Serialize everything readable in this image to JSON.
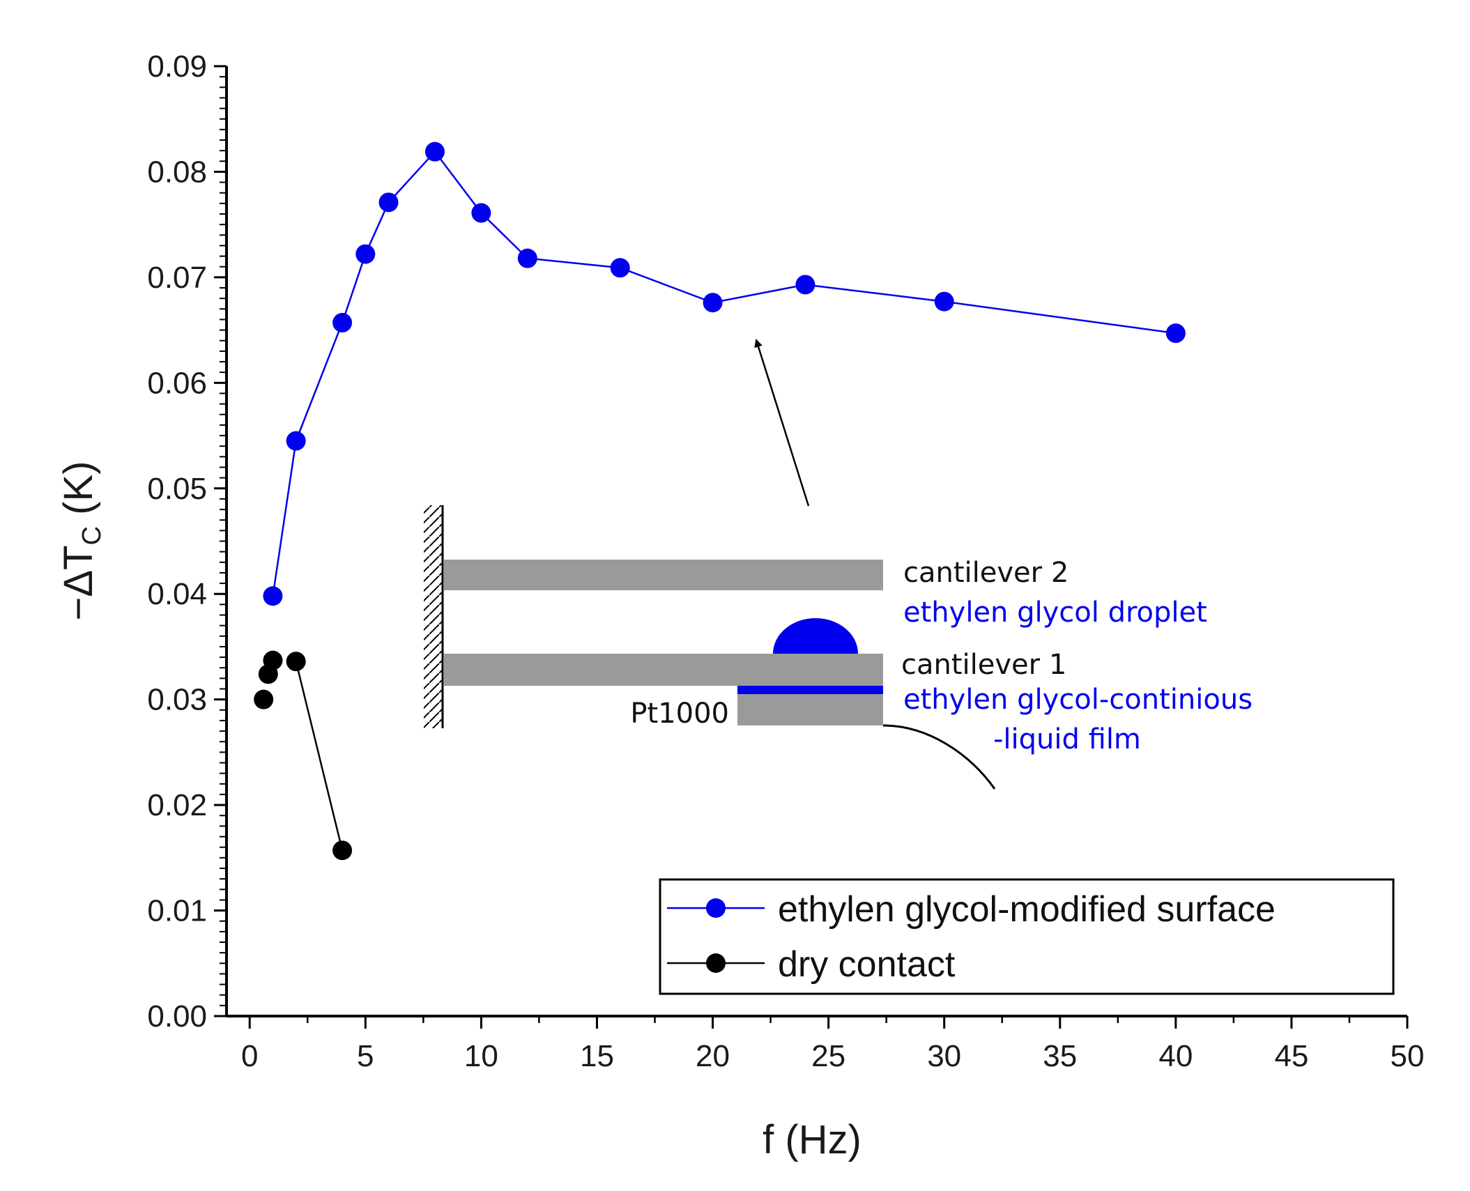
{
  "chart_data": {
    "type": "scatter",
    "title": "",
    "xlabel": "f (Hz)",
    "ylabel": {
      "prefix": "−ΔT",
      "subscript": "C",
      "suffix": " (K)"
    },
    "xlim": [
      -1,
      50
    ],
    "ylim": [
      0,
      0.09
    ],
    "x_ticks": [
      "0",
      "5",
      "10",
      "15",
      "20",
      "25",
      "30",
      "35",
      "40",
      "45",
      "50"
    ],
    "y_ticks": [
      "0.00",
      "0.01",
      "0.02",
      "0.03",
      "0.04",
      "0.05",
      "0.06",
      "0.07",
      "0.08",
      "0.09"
    ],
    "series": [
      {
        "name": "ethylen glycol-modified surface",
        "color": "#0000ee",
        "line": true,
        "x": [
          1,
          2,
          4,
          5,
          6,
          8,
          10,
          12,
          16,
          20,
          24,
          30,
          40
        ],
        "y": [
          0.0398,
          0.0545,
          0.0657,
          0.0722,
          0.0771,
          0.0819,
          0.0761,
          0.0718,
          0.0709,
          0.0676,
          0.0693,
          0.0677,
          0.0647
        ]
      },
      {
        "name": "dry contact",
        "color": "#000000",
        "line": false,
        "x": [
          0.6,
          0.8,
          1,
          2,
          4
        ],
        "y": [
          0.03,
          0.0324,
          0.0337,
          0.0336,
          0.0157
        ]
      }
    ],
    "connector": {
      "from_x": 2,
      "from_y": 0.0336,
      "to_x": 4,
      "to_y": 0.0157
    },
    "legend": {
      "placement": "bottom-right"
    },
    "inset": {
      "labels": {
        "cantilever2": "cantilever 2",
        "droplet": "ethylen glycol droplet",
        "cantilever1": "cantilever 1",
        "film_line1": "ethylen glycol-continious",
        "film_line2": "-liquid film",
        "sensor": "Pt1000"
      },
      "colors": {
        "beam": "#9a9a9a",
        "liquid": "#0000ee",
        "label": "#111111"
      }
    }
  }
}
